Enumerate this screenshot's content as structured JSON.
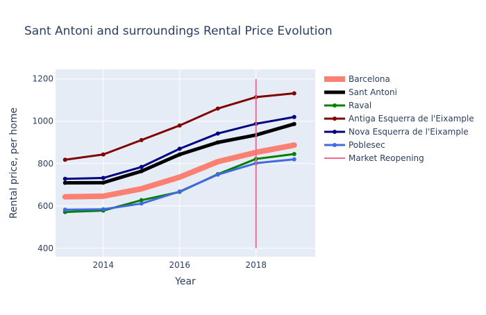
{
  "chart_data": {
    "type": "line",
    "title": "Sant Antoni and surroundings Rental Price Evolution",
    "xlabel": "Year",
    "ylabel": "Rental price, per home",
    "xlim": [
      2012.75,
      2019.55
    ],
    "ylim": [
      360,
      1245
    ],
    "x_ticks": [
      2014,
      2016,
      2018
    ],
    "x_tick_labels": [
      "2014",
      "2016",
      "2018"
    ],
    "y_ticks": [
      400,
      600,
      800,
      1000,
      1200
    ],
    "y_tick_labels": [
      "400",
      "600",
      "800",
      "1000",
      "1200"
    ],
    "grid": true,
    "legend_position": "right",
    "x": [
      2013,
      2014,
      2015,
      2016,
      2017,
      2018,
      2019
    ],
    "series": [
      {
        "name": "Barcelona",
        "color": "#fa8072",
        "values": [
          643,
          646,
          681,
          736,
          809,
          853,
          887
        ]
      },
      {
        "name": "Sant Antoni",
        "color": "#000000",
        "values": [
          709,
          710,
          764,
          843,
          900,
          935,
          987
        ]
      },
      {
        "name": "Raval",
        "color": "#008000",
        "values": [
          571,
          578,
          627,
          666,
          750,
          822,
          845
        ]
      },
      {
        "name": "Antiga Esquerra de l'Eixample",
        "color": "#800000",
        "values": [
          818,
          843,
          911,
          980,
          1060,
          1114,
          1132
        ]
      },
      {
        "name": "Nova Esquerra de l'Eixample",
        "color": "#000080",
        "values": [
          728,
          732,
          784,
          870,
          942,
          988,
          1020
        ]
      },
      {
        "name": "Poblesec",
        "color": "#4169e1",
        "values": [
          582,
          584,
          611,
          668,
          748,
          802,
          820
        ]
      }
    ],
    "markers": [
      {
        "name": "Market Reopening",
        "type": "vertical-line",
        "x": 2018,
        "color": "#f06a8f",
        "y_range": [
          400,
          1200
        ]
      }
    ]
  }
}
